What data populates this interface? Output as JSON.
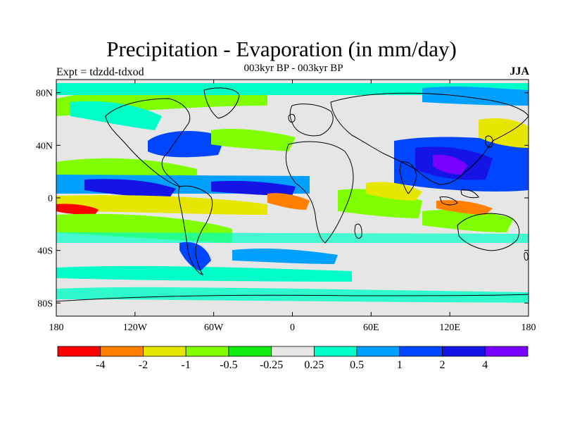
{
  "header": {
    "title": "Precipitation - Evaporation (in mm/day)",
    "subtitle": "003kyr BP - 003kyr BP",
    "left_string": "Expt = tdzdd-tdxod",
    "right_string": "JJA"
  },
  "map": {
    "projection": "cylindrical-equidistant",
    "lon_range": [
      -180,
      180
    ],
    "lat_range": [
      -90,
      90
    ],
    "lat_ticks": [
      {
        "value": 80,
        "label": "80N"
      },
      {
        "value": 40,
        "label": "40N"
      },
      {
        "value": 0,
        "label": "0"
      },
      {
        "value": -40,
        "label": "40S"
      },
      {
        "value": -80,
        "label": "80S"
      }
    ],
    "lon_ticks": [
      {
        "value": -180,
        "label": "180"
      },
      {
        "value": -120,
        "label": "120W"
      },
      {
        "value": -60,
        "label": "60W"
      },
      {
        "value": 0,
        "label": "0"
      },
      {
        "value": 60,
        "label": "60E"
      },
      {
        "value": 120,
        "label": "120E"
      },
      {
        "value": 180,
        "label": "180"
      }
    ],
    "land_outline_color": "#000000",
    "background_color": "#e6e6e6"
  },
  "colorbar": {
    "colors": [
      "#ff0000",
      "#ff8000",
      "#e6e600",
      "#80ff00",
      "#10ee10",
      "#e6e6e6",
      "#00ffc8",
      "#00a0ff",
      "#0046ff",
      "#1414e6",
      "#7800ff"
    ],
    "labels": [
      "-4",
      "-2",
      "-1",
      "-0.5",
      "-0.25",
      "0.25",
      "0.5",
      "1",
      "2",
      "4"
    ]
  }
}
